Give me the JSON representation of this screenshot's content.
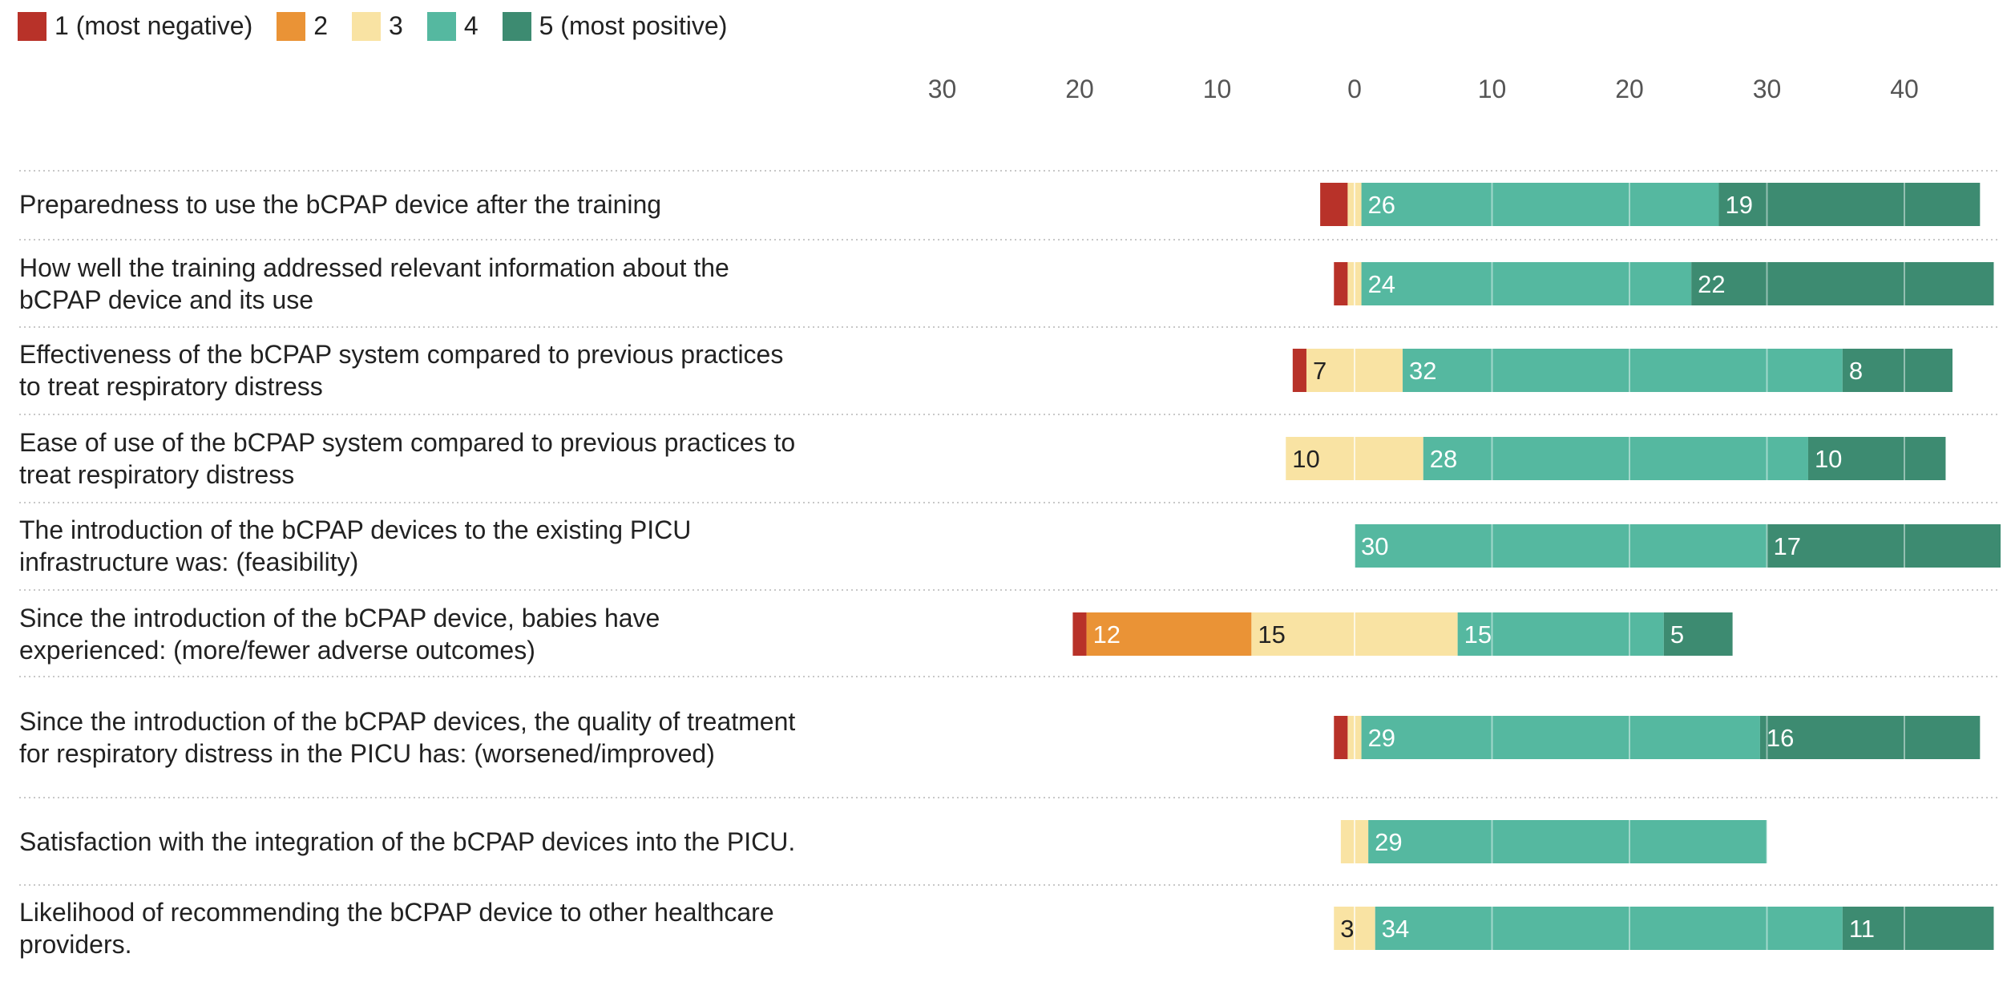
{
  "legend": [
    {
      "label": "1 (most negative)",
      "color": "#b83229"
    },
    {
      "label": "2",
      "color": "#ea9336"
    },
    {
      "label": "3",
      "color": "#f9e3a3"
    },
    {
      "label": "4",
      "color": "#55b8a0"
    },
    {
      "label": "5 (most positive)",
      "color": "#3d8b71"
    }
  ],
  "chart_data": {
    "type": "bar",
    "subtype": "diverging-stacked",
    "xlim": [
      -30,
      47
    ],
    "x_ticks": [
      -30,
      -20,
      -10,
      0,
      10,
      20,
      30,
      40
    ],
    "x_tick_labels": [
      "30",
      "20",
      "10",
      "0",
      "10",
      "20",
      "30",
      "40"
    ],
    "legend_position": "top-left",
    "series_names": [
      "1 (most negative)",
      "2",
      "3",
      "4",
      "5 (most positive)"
    ],
    "rows": [
      {
        "label": "Preparedness to use the bCPAP device after the training",
        "values": [
          2,
          0,
          1,
          26,
          19
        ],
        "labels": [
          "",
          "",
          "",
          "26",
          "19"
        ]
      },
      {
        "label": "How well the training addressed relevant information about the bCPAP device and its use",
        "values": [
          1,
          0,
          1,
          24,
          22
        ],
        "labels": [
          "",
          "",
          "",
          "24",
          "22"
        ]
      },
      {
        "label": "Effectiveness of the bCPAP system compared to previous practices to treat respiratory distress",
        "values": [
          1,
          0,
          7,
          32,
          8
        ],
        "labels": [
          "",
          "",
          "7",
          "32",
          "8"
        ]
      },
      {
        "label": "Ease of use of the bCPAP system compared to previous practices to treat respiratory distress",
        "values": [
          0,
          0,
          10,
          28,
          10
        ],
        "labels": [
          "",
          "",
          "10",
          "28",
          "10"
        ]
      },
      {
        "label": "The introduction of the bCPAP devices to the existing PICU infrastructure was: (feasibility)",
        "values": [
          0,
          0,
          0,
          30,
          17
        ],
        "labels": [
          "",
          "",
          "",
          "30",
          "17"
        ]
      },
      {
        "label": "Since the introduction of the bCPAP device, babies have experienced: (more/fewer adverse outcomes)",
        "values": [
          1,
          12,
          15,
          15,
          5
        ],
        "labels": [
          "",
          "12",
          "15",
          "15",
          "5"
        ]
      },
      {
        "label": "Since the introduction of the bCPAP devices, the quality of treatment for respiratory distress in the PICU has: (worsened/improved)",
        "values": [
          1,
          0,
          1,
          29,
          16
        ],
        "labels": [
          "",
          "",
          "",
          "29",
          "16"
        ]
      },
      {
        "label": "Satisfaction with the integration of the bCPAP devices into the PICU.",
        "values": [
          0,
          0,
          2,
          29,
          0
        ],
        "labels": [
          "",
          "",
          "",
          "29",
          ""
        ]
      },
      {
        "label": "Likelihood of recommending the bCPAP device to other healthcare providers.",
        "values": [
          0,
          0,
          3,
          34,
          11
        ],
        "labels": [
          "",
          "",
          "3",
          "34",
          "11"
        ]
      }
    ]
  }
}
